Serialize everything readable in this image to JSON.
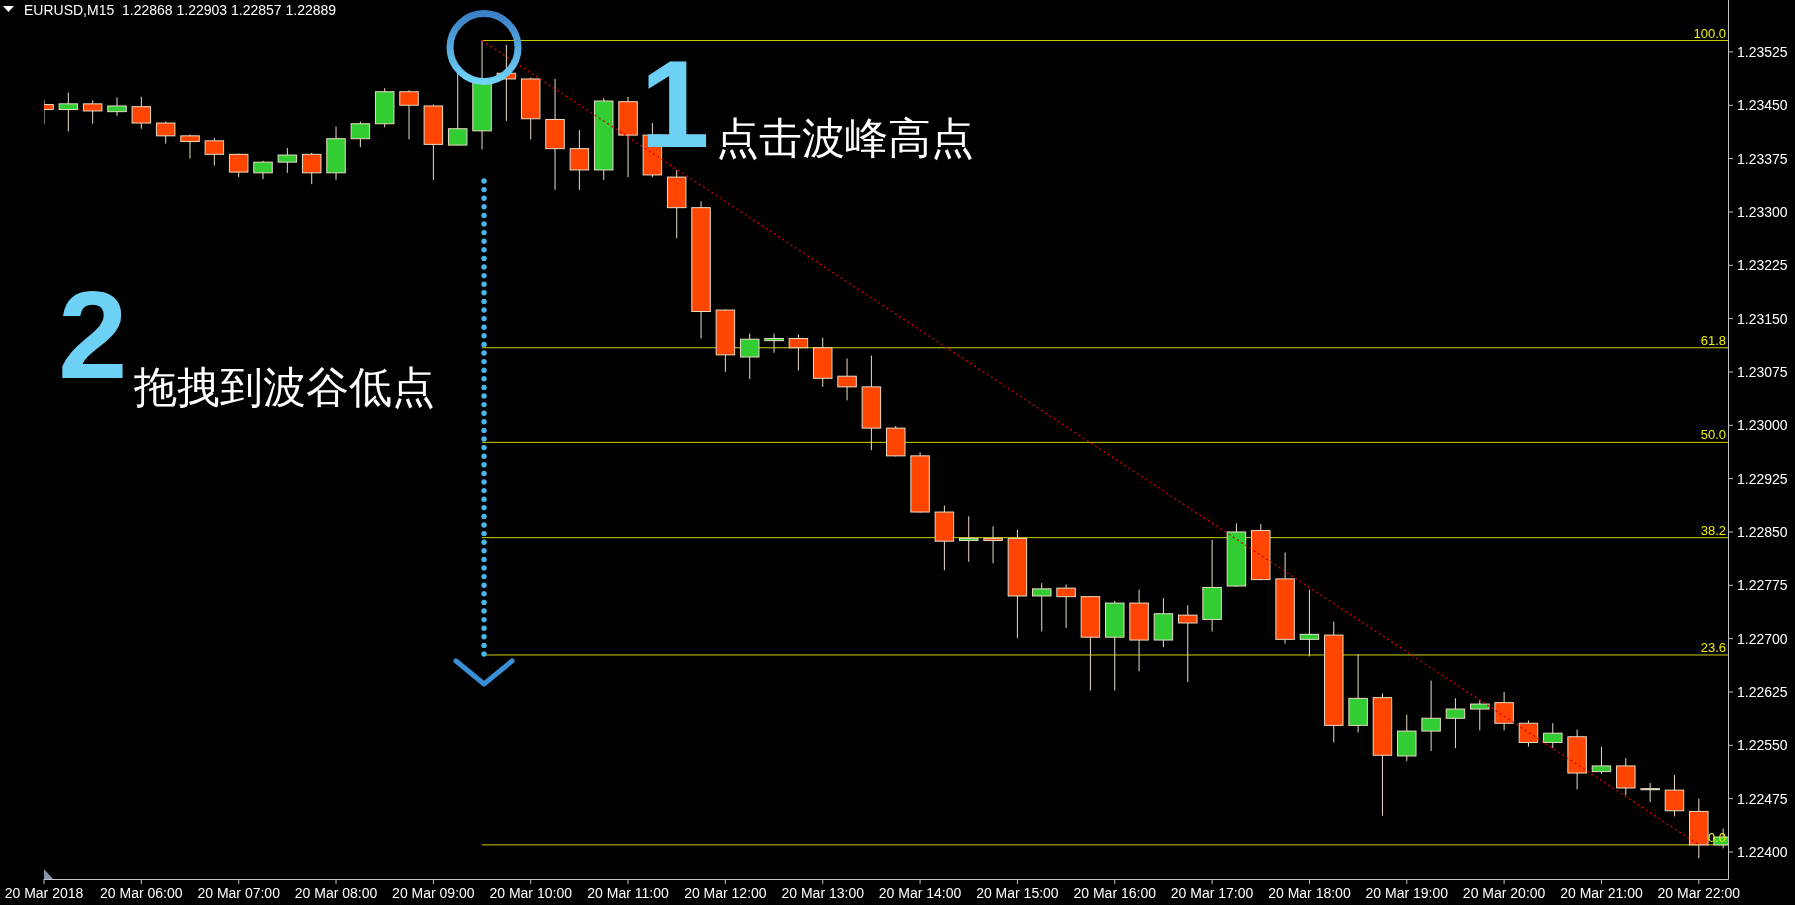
{
  "chart_data": {
    "type": "candlestick",
    "title": "EURUSD,M15  1.22868 1.22903 1.22857 1.22889",
    "annotations": [
      "1",
      "点击波峰高点",
      "2",
      "拖拽到波谷低点",
      {
        "text": "100.0",
        "x": "2018-03-20T22:18",
        "y": 1.23541
      },
      {
        "text": "61.8",
        "x": "2018-03-20T22:18",
        "y": 1.23109
      },
      {
        "text": "50.0",
        "x": "2018-03-20T22:18",
        "y": 1.22976
      },
      {
        "text": "38.2",
        "x": "2018-03-20T22:18",
        "y": 1.22842
      },
      {
        "text": "23.6",
        "x": "2018-03-20T22:18",
        "y": 1.22677
      },
      {
        "text": "0.0",
        "x": "2018-03-20T22:18",
        "y": 1.2241
      }
    ],
    "x": [
      "2018-03-20T05:00",
      "2018-03-20T05:15",
      "2018-03-20T05:30",
      "2018-03-20T05:45",
      "2018-03-20T06:00",
      "2018-03-20T06:15",
      "2018-03-20T06:30",
      "2018-03-20T06:45",
      "2018-03-20T07:00",
      "2018-03-20T07:15",
      "2018-03-20T07:30",
      "2018-03-20T07:45",
      "2018-03-20T08:00",
      "2018-03-20T08:15",
      "2018-03-20T08:30",
      "2018-03-20T08:45",
      "2018-03-20T09:00",
      "2018-03-20T09:15",
      "2018-03-20T09:30",
      "2018-03-20T09:45",
      "2018-03-20T10:00",
      "2018-03-20T10:15",
      "2018-03-20T10:30",
      "2018-03-20T10:45",
      "2018-03-20T11:00",
      "2018-03-20T11:15",
      "2018-03-20T11:30",
      "2018-03-20T11:45",
      "2018-03-20T12:00",
      "2018-03-20T12:15",
      "2018-03-20T12:30",
      "2018-03-20T12:45",
      "2018-03-20T13:00",
      "2018-03-20T13:15",
      "2018-03-20T13:30",
      "2018-03-20T13:45",
      "2018-03-20T14:00",
      "2018-03-20T14:15",
      "2018-03-20T14:30",
      "2018-03-20T14:45",
      "2018-03-20T15:00",
      "2018-03-20T15:15",
      "2018-03-20T15:30",
      "2018-03-20T15:45",
      "2018-03-20T16:00",
      "2018-03-20T16:15",
      "2018-03-20T16:30",
      "2018-03-20T16:45",
      "2018-03-20T17:00",
      "2018-03-20T17:15",
      "2018-03-20T17:30",
      "2018-03-20T17:45",
      "2018-03-20T18:00",
      "2018-03-20T18:15",
      "2018-03-20T18:30",
      "2018-03-20T18:45",
      "2018-03-20T19:00",
      "2018-03-20T19:15",
      "2018-03-20T19:30",
      "2018-03-20T19:45",
      "2018-03-20T20:00",
      "2018-03-20T20:15",
      "2018-03-20T20:30",
      "2018-03-20T20:45",
      "2018-03-20T21:00",
      "2018-03-20T21:15",
      "2018-03-20T21:30",
      "2018-03-20T21:45",
      "2018-03-20T22:00",
      "2018-03-20T22:15"
    ],
    "ohlc": [
      [
        1.23451,
        1.23458,
        1.23423,
        1.23444
      ],
      [
        1.23444,
        1.23468,
        1.23413,
        1.23452
      ],
      [
        1.23452,
        1.23457,
        1.23424,
        1.23442
      ],
      [
        1.23441,
        1.23461,
        1.23435,
        1.23449
      ],
      [
        1.23448,
        1.23462,
        1.23417,
        1.23425
      ],
      [
        1.23425,
        1.23427,
        1.23396,
        1.23407
      ],
      [
        1.23407,
        1.23409,
        1.23375,
        1.23399
      ],
      [
        1.234,
        1.23404,
        1.23365,
        1.23381
      ],
      [
        1.23381,
        1.23382,
        1.23349,
        1.23356
      ],
      [
        1.23355,
        1.23372,
        1.23346,
        1.2337
      ],
      [
        1.2337,
        1.2339,
        1.23355,
        1.2338
      ],
      [
        1.23381,
        1.23383,
        1.23339,
        1.23355
      ],
      [
        1.23355,
        1.2342,
        1.23345,
        1.23403
      ],
      [
        1.23403,
        1.23427,
        1.23391,
        1.23424
      ],
      [
        1.23424,
        1.23474,
        1.23419,
        1.23469
      ],
      [
        1.23469,
        1.23471,
        1.23402,
        1.2345
      ],
      [
        1.23449,
        1.23451,
        1.23345,
        1.23395
      ],
      [
        1.23394,
        1.23496,
        1.23393,
        1.23417
      ],
      [
        1.23414,
        1.23541,
        1.23388,
        1.23484
      ],
      [
        1.23495,
        1.23535,
        1.23428,
        1.23487
      ],
      [
        1.23487,
        1.23489,
        1.23402,
        1.23431
      ],
      [
        1.2343,
        1.23487,
        1.23331,
        1.23389
      ],
      [
        1.23389,
        1.23415,
        1.23331,
        1.23359
      ],
      [
        1.23359,
        1.2346,
        1.23345,
        1.23456
      ],
      [
        1.23455,
        1.23462,
        1.23349,
        1.23408
      ],
      [
        1.23408,
        1.23425,
        1.23349,
        1.23352
      ],
      [
        1.23349,
        1.23359,
        1.23263,
        1.23306
      ],
      [
        1.23306,
        1.23315,
        1.23122,
        1.2316
      ],
      [
        1.23162,
        1.23163,
        1.23075,
        1.23099
      ],
      [
        1.23096,
        1.23129,
        1.23065,
        1.23121
      ],
      [
        1.23119,
        1.23129,
        1.23102,
        1.23122
      ],
      [
        1.23122,
        1.23128,
        1.23077,
        1.23109
      ],
      [
        1.23109,
        1.23123,
        1.23054,
        1.23066
      ],
      [
        1.23069,
        1.23094,
        1.23035,
        1.23054
      ],
      [
        1.23054,
        1.23098,
        1.22965,
        1.22996
      ],
      [
        1.22996,
        1.22999,
        1.22956,
        1.22957
      ],
      [
        1.22957,
        1.22962,
        1.22877,
        1.22878
      ],
      [
        1.22878,
        1.22887,
        1.22796,
        1.22837
      ],
      [
        1.22838,
        1.22872,
        1.22808,
        1.22841
      ],
      [
        1.22841,
        1.22858,
        1.22806,
        1.22838
      ],
      [
        1.22841,
        1.22853,
        1.22701,
        1.2276
      ],
      [
        1.2276,
        1.22778,
        1.2271,
        1.2277
      ],
      [
        1.22771,
        1.22776,
        1.22715,
        1.22759
      ],
      [
        1.22759,
        1.2276,
        1.22627,
        1.22702
      ],
      [
        1.22702,
        1.22753,
        1.22627,
        1.2275
      ],
      [
        1.2275,
        1.22769,
        1.22654,
        1.22698
      ],
      [
        1.22698,
        1.22757,
        1.22688,
        1.22735
      ],
      [
        1.22733,
        1.22747,
        1.22639,
        1.22722
      ],
      [
        1.22727,
        1.22839,
        1.2271,
        1.22772
      ],
      [
        1.22774,
        1.22862,
        1.22773,
        1.2285
      ],
      [
        1.22852,
        1.22861,
        1.22782,
        1.22783
      ],
      [
        1.22784,
        1.22821,
        1.22693,
        1.22699
      ],
      [
        1.22699,
        1.22769,
        1.22675,
        1.22706
      ],
      [
        1.22705,
        1.22724,
        1.22554,
        1.22578
      ],
      [
        1.22578,
        1.22678,
        1.22568,
        1.22616
      ],
      [
        1.22617,
        1.22623,
        1.22451,
        1.22536
      ],
      [
        1.22535,
        1.22593,
        1.22528,
        1.2257
      ],
      [
        1.2257,
        1.22641,
        1.22542,
        1.22588
      ],
      [
        1.22588,
        1.22616,
        1.22546,
        1.22601
      ],
      [
        1.22601,
        1.22614,
        1.22571,
        1.22608
      ],
      [
        1.2261,
        1.22625,
        1.22571,
        1.22581
      ],
      [
        1.22581,
        1.22585,
        1.22548,
        1.22554
      ],
      [
        1.22554,
        1.22581,
        1.22546,
        1.22567
      ],
      [
        1.22562,
        1.22572,
        1.22488,
        1.22511
      ],
      [
        1.22513,
        1.22548,
        1.2251,
        1.22521
      ],
      [
        1.22521,
        1.22532,
        1.2248,
        1.2249
      ],
      [
        1.22489,
        1.22497,
        1.2247,
        1.22489
      ],
      [
        1.22487,
        1.22508,
        1.2245,
        1.22458
      ],
      [
        1.22457,
        1.22475,
        1.22391,
        1.2241
      ],
      [
        1.2241,
        1.22433,
        1.22405,
        1.22421
      ]
    ],
    "colors": [
      "#ff4500",
      "#32cd32",
      "#ff4500",
      "#32cd32",
      "#ff4500",
      "#ff4500",
      "#ff4500",
      "#ff4500",
      "#ff4500",
      "#32cd32",
      "#32cd32",
      "#ff4500",
      "#32cd32",
      "#32cd32",
      "#32cd32",
      "#ff4500",
      "#ff4500",
      "#32cd32",
      "#32cd32",
      "#ff4500",
      "#ff4500",
      "#ff4500",
      "#ff4500",
      "#32cd32",
      "#ff4500",
      "#ff4500",
      "#ff4500",
      "#ff4500",
      "#ff4500",
      "#32cd32",
      "#32cd32",
      "#ff4500",
      "#ff4500",
      "#ff4500",
      "#ff4500",
      "#ff4500",
      "#ff4500",
      "#ff4500",
      "#32cd32",
      "#ff4500",
      "#ff4500",
      "#32cd32",
      "#ff4500",
      "#ff4500",
      "#32cd32",
      "#ff4500",
      "#32cd32",
      "#ff4500",
      "#32cd32",
      "#32cd32",
      "#ff4500",
      "#ff4500",
      "#32cd32",
      "#ff4500",
      "#32cd32",
      "#ff4500",
      "#32cd32",
      "#32cd32",
      "#32cd32",
      "#32cd32",
      "#ff4500",
      "#ff4500",
      "#32cd32",
      "#ff4500",
      "#32cd32",
      "#ff4500",
      "#32cd32",
      "#ff4500",
      "#ff4500",
      "#32cd32"
    ],
    "color": "#e8dcc6",
    "series": [
      {
        "type": "line",
        "x": [
          "2018-03-20T09:30",
          "2018-03-20T22:00"
        ],
        "values": [
          1.23541,
          1.2241
        ],
        "color": "#d80000",
        "line_style": "dotted"
      }
    ],
    "ref_lines": [
      {
        "axis": "y",
        "value": 1.23541,
        "color": "#d0d000"
      },
      {
        "axis": "y",
        "value": 1.23109,
        "color": "#d0d000"
      },
      {
        "axis": "y",
        "value": 1.22976,
        "color": "#d0d000"
      },
      {
        "axis": "y",
        "value": 1.22842,
        "color": "#d0d000"
      },
      {
        "axis": "y",
        "value": 1.22677,
        "color": "#d0d000"
      },
      {
        "axis": "y",
        "value": 1.2241,
        "color": "#d0d000"
      }
    ],
    "xlim": [
      "2018-03-20T05:00",
      "2018-03-20T22:18"
    ],
    "xticks": [
      {
        "value": "2018-03-20T05:00",
        "label": "20 Mar 2018"
      },
      {
        "value": "2018-03-20T06:00",
        "label": "20 Mar 06:00"
      },
      {
        "value": "2018-03-20T07:00",
        "label": "20 Mar 07:00"
      },
      {
        "value": "2018-03-20T08:00",
        "label": "20 Mar 08:00"
      },
      {
        "value": "2018-03-20T09:00",
        "label": "20 Mar 09:00"
      },
      {
        "value": "2018-03-20T10:00",
        "label": "20 Mar 10:00"
      },
      {
        "value": "2018-03-20T11:00",
        "label": "20 Mar 11:00"
      },
      {
        "value": "2018-03-20T12:00",
        "label": "20 Mar 12:00"
      },
      {
        "value": "2018-03-20T13:00",
        "label": "20 Mar 13:00"
      },
      {
        "value": "2018-03-20T14:00",
        "label": "20 Mar 14:00"
      },
      {
        "value": "2018-03-20T15:00",
        "label": "20 Mar 15:00"
      },
      {
        "value": "2018-03-20T16:00",
        "label": "20 Mar 16:00"
      },
      {
        "value": "2018-03-20T17:00",
        "label": "20 Mar 17:00"
      },
      {
        "value": "2018-03-20T18:00",
        "label": "20 Mar 18:00"
      },
      {
        "value": "2018-03-20T19:00",
        "label": "20 Mar 19:00"
      },
      {
        "value": "2018-03-20T20:00",
        "label": "20 Mar 20:00"
      },
      {
        "value": "2018-03-20T21:00",
        "label": "20 Mar 21:00"
      },
      {
        "value": "2018-03-20T22:00",
        "label": "20 Mar 22:00"
      }
    ],
    "ylim": [
      1.22362,
      1.23598
    ],
    "yticks": [
      {
        "value": 1.224,
        "label": "1.22400"
      },
      1.22475,
      {
        "value": 1.2255,
        "label": "1.22550"
      },
      1.22625,
      {
        "value": 1.227,
        "label": "1.22700"
      },
      1.22775,
      {
        "value": 1.2285,
        "label": "1.22850"
      },
      1.22925,
      {
        "value": 1.23,
        "label": "1.23000"
      },
      1.23075,
      {
        "value": 1.2315,
        "label": "1.23150"
      },
      1.23225,
      {
        "value": 1.233,
        "label": "1.23300"
      },
      1.23375,
      {
        "value": 1.2345,
        "label": "1.23450"
      },
      1.23525
    ]
  }
}
